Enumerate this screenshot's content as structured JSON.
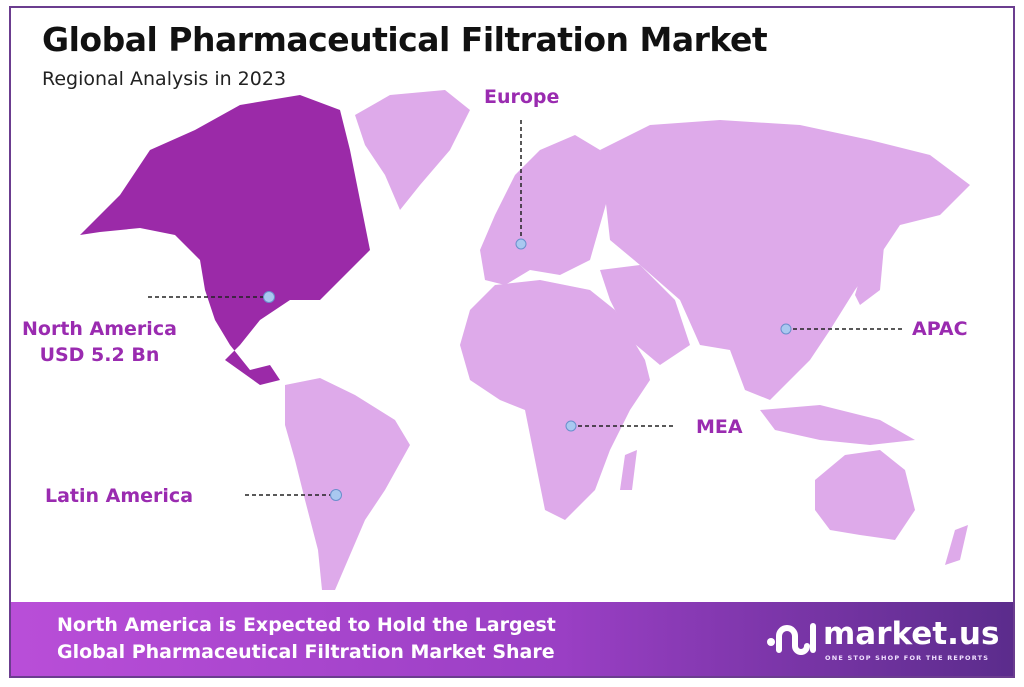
{
  "header": {
    "title": "Global Pharmaceutical Filtration Market",
    "subtitle": "Regional Analysis in 2023"
  },
  "regions": [
    {
      "name": "North America",
      "value": "USD 5.2 Bn",
      "highlighted": true
    },
    {
      "name": "Europe"
    },
    {
      "name": "APAC"
    },
    {
      "name": "MEA"
    },
    {
      "name": "Latin America"
    }
  ],
  "colors": {
    "highlight": "#9b2aa8",
    "region": "#deaaea",
    "label": "#9a2bb0",
    "marker": "#a9c8f0",
    "banner_start": "#b94ed8",
    "banner_end": "#5b2c8c"
  },
  "banner": {
    "line1": "North America is Expected to Hold the Largest",
    "line2": "Global Pharmaceutical Filtration Market Share"
  },
  "logo": {
    "name": "market.us",
    "tagline": "ONE STOP SHOP FOR THE REPORTS"
  }
}
